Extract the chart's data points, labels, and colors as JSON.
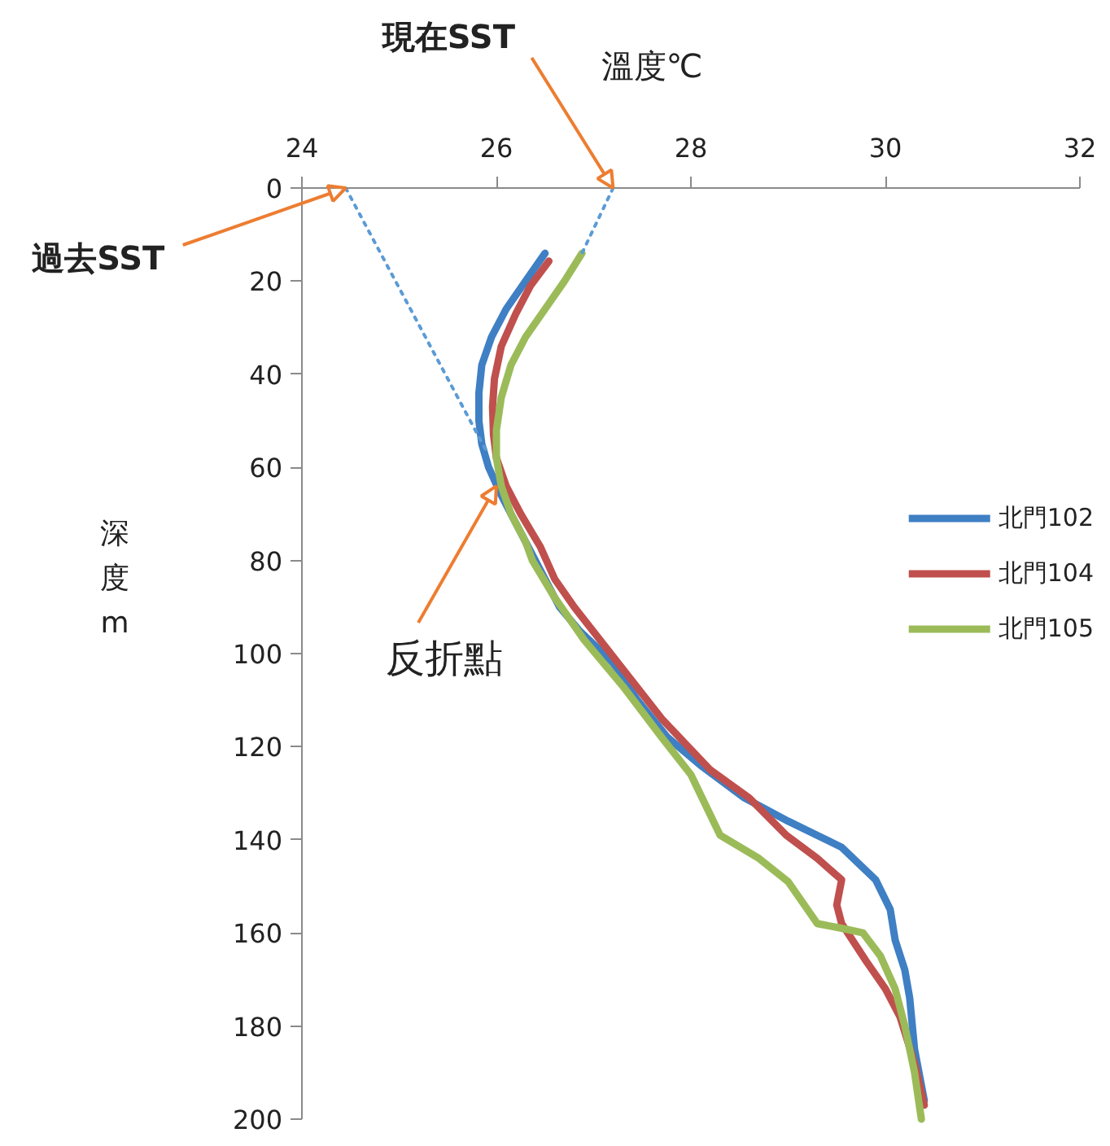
{
  "chart_data": {
    "type": "line",
    "xlabel": "溫度℃",
    "ylabel": "深度m",
    "xlim": [
      24,
      32
    ],
    "xticks": [
      24,
      26,
      28,
      30,
      32
    ],
    "ylim": [
      200,
      0
    ],
    "yticks": [
      0,
      20,
      40,
      60,
      80,
      100,
      120,
      140,
      160,
      180,
      200
    ],
    "grid": false,
    "legend": "right",
    "marker": "none",
    "line_style": "solid",
    "annotations": [
      {
        "text": "過去SST",
        "x": 24.45,
        "y": 0
      },
      {
        "text": "現在SST",
        "x": 27.2,
        "y": 0
      },
      {
        "text": "反折點",
        "x": 26.0,
        "y": 64
      }
    ],
    "series": [
      {
        "name": "北門102",
        "color": "#3f7fc4",
        "x": [
          26.5,
          26.3,
          26.1,
          25.95,
          25.85,
          25.82,
          25.82,
          25.85,
          25.92,
          26.05,
          26.2,
          26.35,
          26.5,
          26.65,
          26.85,
          27.2,
          27.45,
          27.76,
          28.1,
          28.55,
          29.0,
          29.55,
          29.9,
          30.05,
          30.1,
          30.2,
          30.25,
          30.3,
          30.4
        ],
        "values": [
          14,
          20,
          26,
          32,
          38,
          44,
          50,
          55,
          60,
          66,
          72,
          78,
          84,
          90,
          95,
          102,
          110,
          118,
          124,
          131,
          136,
          141.6,
          148.6,
          155,
          161.5,
          168,
          174,
          185,
          196
        ]
      },
      {
        "name": "北門104",
        "color": "#c0504d",
        "x": [
          26.54,
          26.35,
          26.2,
          26.05,
          25.98,
          25.96,
          25.97,
          26.0,
          26.1,
          26.25,
          26.45,
          26.6,
          26.8,
          27.1,
          27.4,
          27.7,
          28.2,
          28.6,
          28.98,
          29.3,
          29.55,
          29.5,
          29.55,
          29.8,
          30.0,
          30.15,
          30.3,
          30.4
        ],
        "values": [
          15.7,
          21,
          27,
          34,
          41,
          47,
          53,
          58,
          64,
          70,
          77,
          84,
          90,
          98,
          106,
          114,
          125,
          131,
          139,
          144,
          148.6,
          154,
          158,
          166,
          172,
          178,
          188,
          197
        ]
      },
      {
        "name": "北門105",
        "color": "#9bbb59",
        "x": [
          26.88,
          26.7,
          26.5,
          26.3,
          26.15,
          26.05,
          26.0,
          26.0,
          26.05,
          26.15,
          26.3,
          26.37,
          26.6,
          26.9,
          27.3,
          27.7,
          28.0,
          28.3,
          28.7,
          29.0,
          29.3,
          29.55,
          29.77,
          29.95,
          30.1,
          30.2,
          30.3,
          30.37
        ],
        "values": [
          14,
          20,
          26,
          32,
          38,
          45,
          52,
          58,
          64,
          70,
          76,
          80,
          88,
          97,
          107,
          118,
          126,
          139,
          144,
          149,
          158,
          159,
          160,
          165,
          172,
          180,
          190,
          200
        ]
      },
      {
        "color": "#5b9bd5",
        "line_style": "dotted",
        "x": [
          24.45,
          25.9
        ],
        "values": [
          0,
          56.6
        ]
      },
      {
        "color": "#5b9bd5",
        "line_style": "dotted",
        "x": [
          27.2,
          26.88
        ],
        "values": [
          0,
          14
        ]
      }
    ]
  }
}
